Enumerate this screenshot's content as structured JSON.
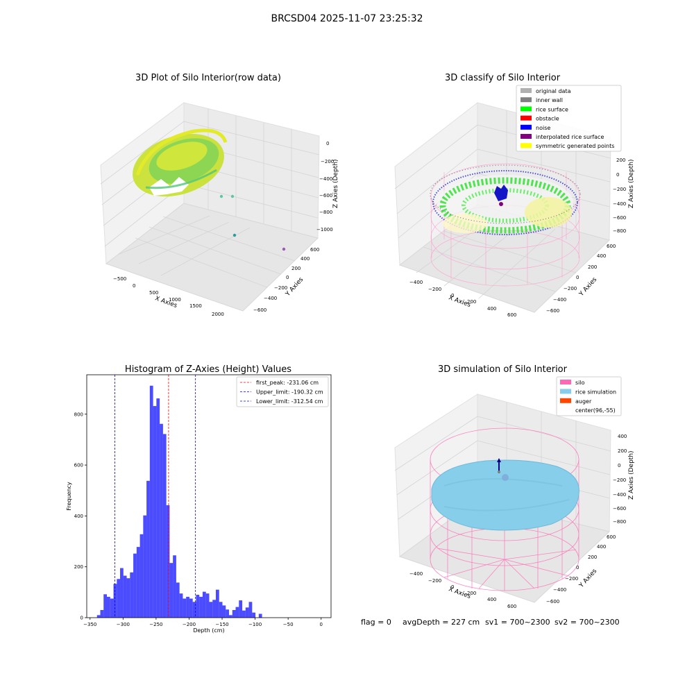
{
  "suptitle": "BRCSD04 2025-11-07 23:25:32",
  "chart_data": [
    {
      "type": "scatter",
      "panel": "raw",
      "title": "3D Plot of Silo Interior(row data)",
      "xlabel": "X Axies",
      "ylabel": "Y Axies",
      "zlabel": "Z Axies (Depth)",
      "x_ticks": [
        "−500",
        "0",
        "500",
        "1000",
        "1500",
        "2000"
      ],
      "y_ticks": [
        "−600",
        "−400",
        "−200",
        "0",
        "200",
        "400",
        "600"
      ],
      "z_ticks": [
        "−1000",
        "−800",
        "−600",
        "−400",
        "−200",
        "0"
      ],
      "outlier_points": [
        {
          "x": 300,
          "y": 400,
          "z": -600,
          "color": "#5dc9a0"
        },
        {
          "x": 450,
          "y": 400,
          "z": -620,
          "color": "#5dc9a0"
        },
        {
          "x": 1000,
          "y": 0,
          "z": -1000,
          "color": "#2a9d9a"
        },
        {
          "x": 2000,
          "y": 600,
          "z": -1000,
          "color": "#9b59b6"
        }
      ]
    },
    {
      "type": "scatter",
      "panel": "classify",
      "title": "3D classify of Silo Interior",
      "xlabel": "X Axies",
      "ylabel": "Y Axies",
      "zlabel": "Z Axies (Depth)",
      "x_ticks": [
        "−400",
        "−200",
        "0",
        "200",
        "400",
        "600"
      ],
      "y_ticks": [
        "−600",
        "−400",
        "−200",
        "0",
        "200",
        "400",
        "600"
      ],
      "z_ticks": [
        "−800",
        "−600",
        "−400",
        "−200",
        "0",
        "200"
      ],
      "legend_loc": "upper right",
      "legend": [
        {
          "label": "original data",
          "color": "#b0b0b0"
        },
        {
          "label": "inner wall",
          "color": "#808080"
        },
        {
          "label": "rice surface",
          "color": "#00ff00"
        },
        {
          "label": "obstacle",
          "color": "#ff0000"
        },
        {
          "label": "noise",
          "color": "#0000ff"
        },
        {
          "label": "interpolated rice surface",
          "color": "#800080"
        },
        {
          "label": "symmetric generated points",
          "color": "#ffff00"
        }
      ]
    },
    {
      "type": "bar",
      "panel": "histogram",
      "title": "Histogram of Z-Axies (Height) Values",
      "xlabel": "Depth (cm)",
      "ylabel": "Frequency",
      "bar_color": "#0000ff",
      "xlim": [
        -355,
        15
      ],
      "ylim": [
        0,
        955
      ],
      "x_ticks": [
        -350,
        -300,
        -250,
        -200,
        -150,
        -100,
        -50,
        0
      ],
      "y_ticks": [
        0,
        200,
        400,
        600,
        800
      ],
      "bin_start": -339.5,
      "bin_width": 5,
      "values": [
        10,
        30,
        92,
        82,
        75,
        133,
        152,
        195,
        165,
        155,
        178,
        252,
        278,
        328,
        402,
        538,
        912,
        832,
        862,
        762,
        722,
        442,
        215,
        245,
        138,
        95,
        75,
        82,
        75,
        62,
        90,
        82,
        102,
        95,
        62,
        70,
        110,
        62,
        48,
        32,
        10,
        30,
        42,
        68,
        28,
        40,
        62,
        20,
        0,
        15
      ],
      "vlines": [
        {
          "x": -231.06,
          "color": "#ff0000",
          "label": "first_peak: -231.06 cm"
        },
        {
          "x": -190.32,
          "color": "#0000ff",
          "label": "Upper_limit: -190.32 cm"
        },
        {
          "x": -312.54,
          "color": "#0000ff",
          "label": "Lower_limit: -312.54 cm"
        }
      ],
      "legend_loc": "upper right"
    },
    {
      "type": "scatter",
      "panel": "simulation",
      "title": "3D simulation of Silo Interior",
      "xlabel": "X Axies",
      "ylabel": "Y Axies",
      "zlabel": "Z Axies (Depth)",
      "x_ticks": [
        "−400",
        "−200",
        "0",
        "200",
        "400",
        "600"
      ],
      "y_ticks": [
        "−600",
        "−400",
        "−200",
        "0",
        "200",
        "400",
        "600"
      ],
      "z_ticks": [
        "−800",
        "−600",
        "−400",
        "−200",
        "0",
        "200",
        "400"
      ],
      "legend_loc": "upper right",
      "legend": [
        {
          "label": "silo",
          "color": "#ff69b4"
        },
        {
          "label": "rice simulation",
          "color": "#87ceeb"
        },
        {
          "label": "auger",
          "color": "#ff4500"
        },
        {
          "label": "center(96,-55)",
          "color": ""
        }
      ]
    }
  ],
  "footer": {
    "flag": "flag = 0",
    "avg_depth": "avgDepth = 227 cm",
    "sv1": "sv1 = 700~2300",
    "sv2": "sv2 = 700~2300"
  }
}
